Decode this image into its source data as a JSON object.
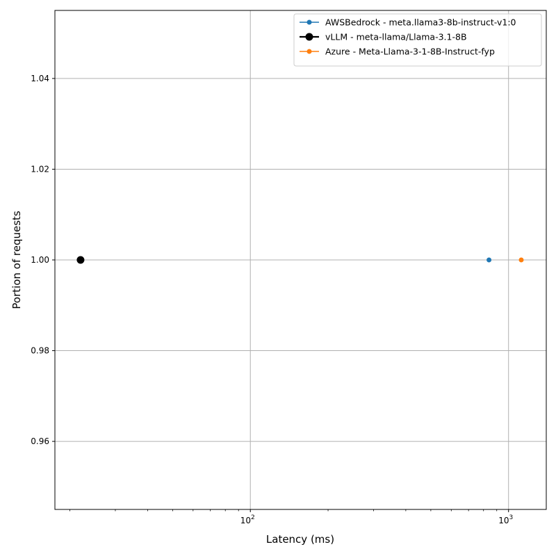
{
  "chart_data": {
    "type": "scatter",
    "title": "",
    "xlabel": "Latency (ms)",
    "ylabel": "Portion of requests",
    "xscale": "log",
    "xlim": [
      17.5,
      1400
    ],
    "ylim": [
      0.945,
      1.055
    ],
    "grid": true,
    "legend_position": "top-right",
    "x_major_ticks": [
      {
        "value": 100,
        "base": "10",
        "exp": "2"
      },
      {
        "value": 1000,
        "base": "10",
        "exp": "3"
      }
    ],
    "x_minor_ticks": [
      20,
      30,
      40,
      50,
      60,
      70,
      80,
      90,
      200,
      300,
      400,
      500,
      600,
      700,
      800,
      900
    ],
    "y_ticks": [
      {
        "value": 0.96,
        "label": "0.96"
      },
      {
        "value": 0.98,
        "label": "0.98"
      },
      {
        "value": 1.0,
        "label": "1.00"
      },
      {
        "value": 1.02,
        "label": "1.02"
      },
      {
        "value": 1.04,
        "label": "1.04"
      }
    ],
    "series": [
      {
        "name": "AWSBedrock - meta.llama3-8b-instruct-v1:0",
        "color": "#1f77b4",
        "style": "small",
        "points": [
          {
            "x": 840,
            "y": 1.0
          }
        ]
      },
      {
        "name": "vLLM - meta-llama/Llama-3.1-8B",
        "color": "#000000",
        "style": "large",
        "points": [
          {
            "x": 22,
            "y": 1.0
          }
        ]
      },
      {
        "name": "Azure - Meta-Llama-3-1-8B-Instruct-fyp",
        "color": "#ff7f0e",
        "style": "small",
        "points": [
          {
            "x": 1120,
            "y": 1.0
          }
        ]
      }
    ]
  }
}
